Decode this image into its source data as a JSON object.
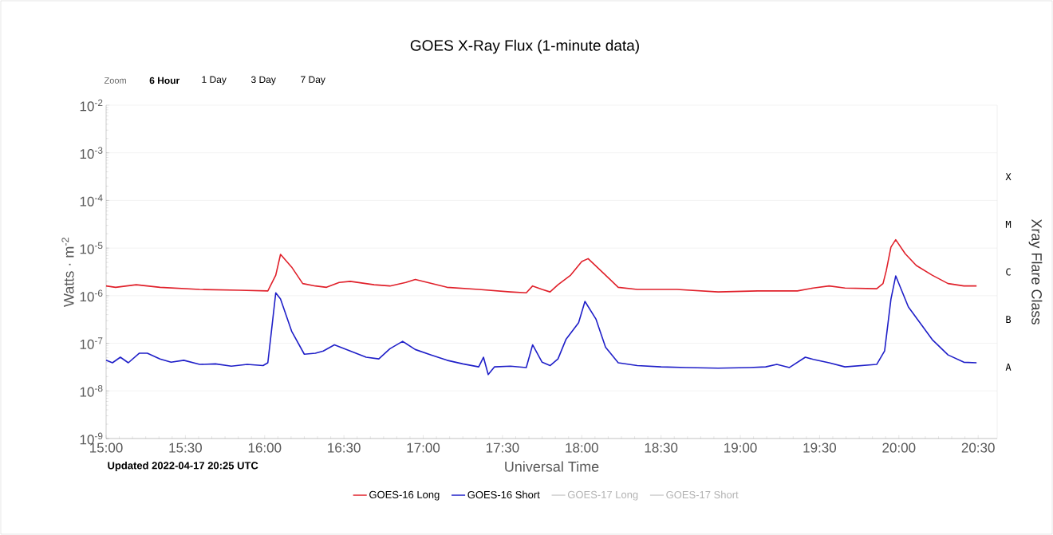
{
  "chart_data": {
    "type": "line",
    "title": "GOES X-Ray Flux (1-minute data)",
    "xlabel": "Universal Time",
    "ylabel": "Watts · m$^{-2}$",
    "y2label": "Xray Flare Class",
    "annotations": [
      "Updated 2022-04-17 20:25 UTC",
      "Zoom",
      "6 Hour",
      "1 Day",
      "3 Day",
      "7 Day",
      "X",
      "M",
      "C",
      "B",
      "A"
    ],
    "log": "y",
    "grid": "y",
    "legend": "bottom",
    "line_style": "solid",
    "marker": "none",
    "xlim": [
      15,
      20.62
    ],
    "xticks": [
      {
        "value": 15,
        "label": "15:00"
      },
      {
        "value": 15.5,
        "label": "15:30"
      },
      {
        "value": 16,
        "label": "16:00"
      },
      {
        "value": 16.5,
        "label": "16:30"
      },
      {
        "value": 17,
        "label": "17:00"
      },
      {
        "value": 17.5,
        "label": "17:30"
      },
      {
        "value": 18,
        "label": "18:00"
      },
      {
        "value": 18.5,
        "label": "18:30"
      },
      {
        "value": 19,
        "label": "19:00"
      },
      {
        "value": 19.5,
        "label": "19:30"
      },
      {
        "value": 20,
        "label": "20:00"
      },
      {
        "value": 20.5,
        "label": "20:30"
      }
    ],
    "ylim": [
      1e-09,
      0.01
    ],
    "yticks": [
      {
        "value": 1e-09,
        "label": "10$^{-9}$"
      },
      {
        "value": 1e-08,
        "label": "10$^{-8}$"
      },
      {
        "value": 1e-07,
        "label": "10$^{-7}$"
      },
      {
        "value": 1e-06,
        "label": "10$^{-6}$"
      },
      {
        "value": 1e-05,
        "label": "10$^{-5}$"
      },
      {
        "value": 0.0001,
        "label": "10$^{-4}$"
      },
      {
        "value": 0.001,
        "label": "10$^{-3}$"
      },
      {
        "value": 0.01,
        "label": "10$^{-2}$"
      }
    ],
    "series": [
      {
        "name": "GOES-16 Long",
        "color": "#e0202a",
        "x": [
          15.0,
          15.06,
          15.19,
          15.34,
          15.59,
          15.84,
          16.02,
          16.07,
          16.1,
          16.17,
          16.24,
          16.32,
          16.39,
          16.47,
          16.54,
          16.69,
          16.79,
          16.89,
          16.95,
          17.15,
          17.35,
          17.55,
          17.65,
          17.69,
          17.75,
          17.8,
          17.85,
          17.93,
          18.0,
          18.04,
          18.15,
          18.23,
          18.35,
          18.6,
          18.86,
          19.11,
          19.36,
          19.46,
          19.56,
          19.66,
          19.86,
          19.9,
          19.92,
          19.95,
          19.98,
          20.04,
          20.11,
          20.21,
          20.31,
          20.41,
          20.49
        ],
        "values": [
          1.6e-06,
          1.5e-06,
          1.7e-06,
          1.5e-06,
          1.35e-06,
          1.3e-06,
          1.26e-06,
          2.7e-06,
          7.4e-06,
          4e-06,
          1.8e-06,
          1.6e-06,
          1.5e-06,
          1.9e-06,
          2e-06,
          1.7e-06,
          1.6e-06,
          1.9e-06,
          2.2e-06,
          1.5e-06,
          1.35e-06,
          1.2e-06,
          1.15e-06,
          1.6e-06,
          1.35e-06,
          1.2e-06,
          1.7e-06,
          2.7e-06,
          5.2e-06,
          6e-06,
          2.7e-06,
          1.5e-06,
          1.35e-06,
          1.35e-06,
          1.2e-06,
          1.26e-06,
          1.26e-06,
          1.45e-06,
          1.6e-06,
          1.45e-06,
          1.4e-06,
          1.8e-06,
          3.3e-06,
          1.05e-05,
          1.5e-05,
          7.6e-06,
          4.3e-06,
          2.7e-06,
          1.8e-06,
          1.6e-06,
          1.6e-06
        ]
      },
      {
        "name": "GOES-16 Short",
        "color": "#1f1fc8",
        "x": [
          15.0,
          15.04,
          15.09,
          15.14,
          15.21,
          15.26,
          15.34,
          15.41,
          15.49,
          15.59,
          15.69,
          15.79,
          15.89,
          15.99,
          16.02,
          16.04,
          16.07,
          16.1,
          16.17,
          16.25,
          16.32,
          16.37,
          16.44,
          16.54,
          16.64,
          16.72,
          16.79,
          16.87,
          16.95,
          17.05,
          17.15,
          17.25,
          17.35,
          17.38,
          17.41,
          17.45,
          17.55,
          17.65,
          17.69,
          17.75,
          17.8,
          17.85,
          17.9,
          17.98,
          18.02,
          18.09,
          18.15,
          18.23,
          18.35,
          18.5,
          18.66,
          18.86,
          19.06,
          19.16,
          19.23,
          19.31,
          19.41,
          19.46,
          19.56,
          19.66,
          19.86,
          19.91,
          19.95,
          19.98,
          20.06,
          20.21,
          20.31,
          20.41,
          20.49
        ],
        "values": [
          4.4e-08,
          3.9e-08,
          5.1e-08,
          3.9e-08,
          6.2e-08,
          6.2e-08,
          4.7e-08,
          4e-08,
          4.4e-08,
          3.6e-08,
          3.7e-08,
          3.3e-08,
          3.6e-08,
          3.4e-08,
          3.9e-08,
          1.5e-07,
          1.15e-06,
          8.5e-07,
          1.8e-07,
          5.9e-08,
          6.2e-08,
          6.9e-08,
          9.3e-08,
          6.9e-08,
          5.1e-08,
          4.7e-08,
          7.7e-08,
          1.1e-07,
          7.4e-08,
          5.7e-08,
          4.4e-08,
          3.7e-08,
          3.2e-08,
          5.1e-08,
          2.2e-08,
          3.2e-08,
          3.3e-08,
          3.1e-08,
          9.3e-08,
          4e-08,
          3.4e-08,
          4.7e-08,
          1.2e-07,
          2.7e-07,
          7.6e-07,
          3.2e-07,
          8.3e-08,
          3.9e-08,
          3.4e-08,
          3.2e-08,
          3.1e-08,
          3e-08,
          3.1e-08,
          3.2e-08,
          3.6e-08,
          3.1e-08,
          5.1e-08,
          4.6e-08,
          3.9e-08,
          3.2e-08,
          3.6e-08,
          6.9e-08,
          8.5e-07,
          2.6e-06,
          5.8e-07,
          1.2e-07,
          5.7e-08,
          4e-08,
          3.9e-08
        ]
      },
      {
        "name": "GOES-17 Long",
        "color": "#cccccc"
      },
      {
        "name": "GOES-17 Short",
        "color": "#cccccc"
      }
    ]
  }
}
